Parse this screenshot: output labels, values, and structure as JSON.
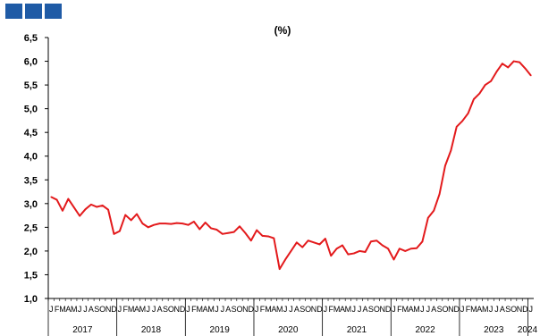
{
  "logo": {
    "color": "#1f5ba6"
  },
  "chart_data": {
    "type": "line",
    "title": "(%)",
    "xlabel": "",
    "ylabel": "",
    "ylim": [
      1.0,
      6.5
    ],
    "yticks": [
      "6,5",
      "6,0",
      "5,5",
      "5,0",
      "4,5",
      "4,0",
      "3,5",
      "3,0",
      "2,5",
      "2,0",
      "1,5",
      "1,0"
    ],
    "month_initials": [
      "J",
      "F",
      "M",
      "A",
      "M",
      "J",
      "J",
      "A",
      "S",
      "O",
      "N",
      "D"
    ],
    "years": [
      "2017",
      "2018",
      "2019",
      "2020",
      "2021",
      "2022",
      "2023",
      "2024"
    ],
    "line_color": "#e31a1c",
    "grid": false,
    "series": [
      {
        "values": [
          3.14,
          3.08,
          2.85,
          3.1,
          2.92,
          2.74,
          2.88,
          2.98,
          2.93,
          2.96,
          2.87,
          2.36,
          2.42,
          2.76,
          2.65,
          2.78,
          2.58,
          2.5,
          2.55,
          2.58,
          2.58,
          2.57,
          2.59,
          2.58,
          2.55,
          2.62,
          2.46,
          2.6,
          2.48,
          2.45,
          2.36,
          2.38,
          2.4,
          2.52,
          2.38,
          2.22,
          2.44,
          2.32,
          2.31,
          2.27,
          1.62,
          1.82,
          2.0,
          2.18,
          2.08,
          2.22,
          2.18,
          2.14,
          2.26,
          1.9,
          2.05,
          2.12,
          1.93,
          1.95,
          2.0,
          1.98,
          2.2,
          2.22,
          2.12,
          2.05,
          1.82,
          2.05,
          2.0,
          2.05,
          2.06,
          2.2,
          2.7,
          2.85,
          3.2,
          3.8,
          4.12,
          4.62,
          4.74,
          4.9,
          5.2,
          5.32,
          5.5,
          5.58,
          5.78,
          5.95,
          5.87,
          6.0,
          5.98,
          5.85,
          5.7
        ]
      }
    ]
  }
}
